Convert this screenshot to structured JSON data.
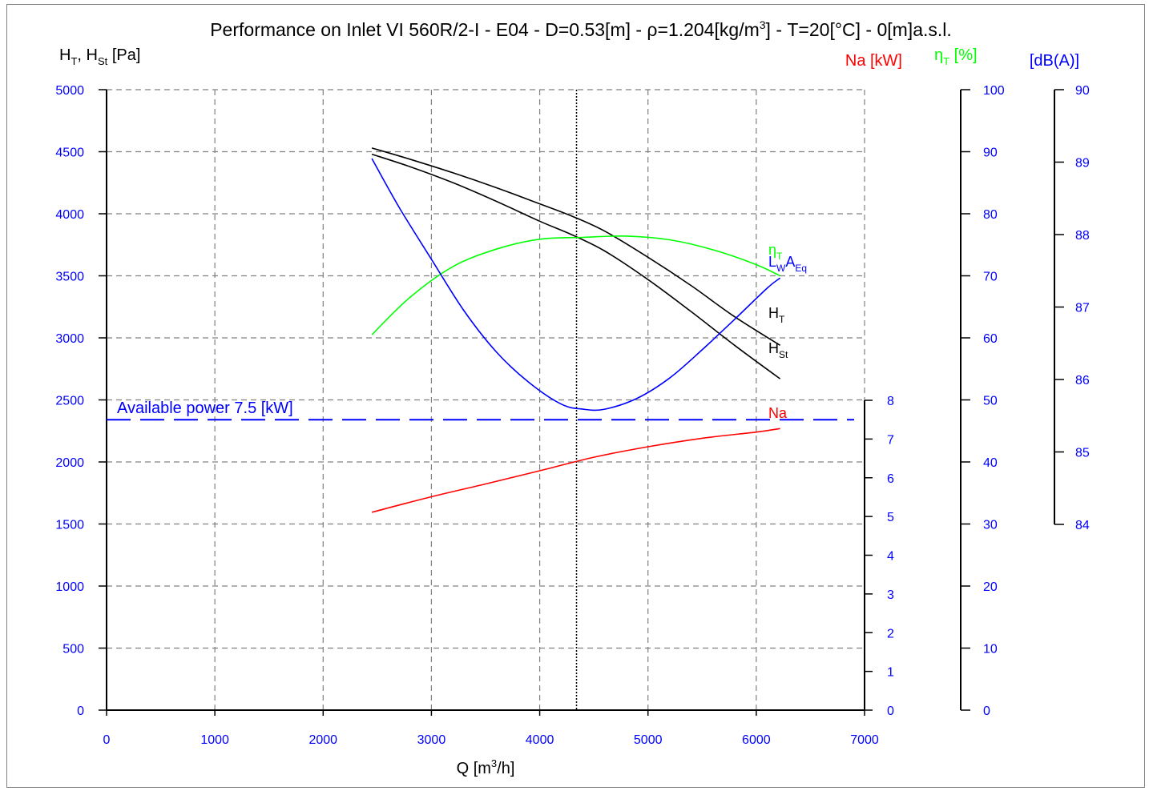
{
  "title": {
    "main": "Performance on Inlet VI 560R/2-I - E04 - D=0.53[m] - ρ=1.204[kg/m",
    "sup": "3",
    "tail": "] - T=20[°C] - 0[m]a.s.l."
  },
  "colors": {
    "black": "#000000",
    "blue": "#0000ff",
    "red": "#ff0000",
    "green": "#00ff00",
    "grid": "#808080",
    "frame": "#808080"
  },
  "chart_data": {
    "type": "line",
    "x_axis": {
      "label_main": "Q [m",
      "label_sup": "3",
      "label_tail": "/h]",
      "min": 0,
      "max": 7000,
      "ticks": [
        "0",
        "1000",
        "2000",
        "3000",
        "4000",
        "5000",
        "6000",
        "7000"
      ]
    },
    "y_axis_pressure": {
      "label_H": "H",
      "label_sub_T": "T",
      "label_sep": ", H",
      "label_sub_St": "St",
      "label_unit": " [Pa]",
      "min": 0,
      "max": 5000,
      "ticks": [
        "0",
        "500",
        "1000",
        "1500",
        "2000",
        "2500",
        "3000",
        "3500",
        "4000",
        "4500",
        "5000"
      ]
    },
    "y_axis_power": {
      "label": "Na [kW]",
      "min": 0,
      "max": 8,
      "ticks": [
        "0",
        "1",
        "2",
        "3",
        "4",
        "5",
        "6",
        "7",
        "8"
      ]
    },
    "y_axis_efficiency": {
      "label_eta": "η",
      "label_sub": "T",
      "label_unit": " [%]",
      "min": 0,
      "max": 100,
      "ticks": [
        "0",
        "10",
        "20",
        "30",
        "40",
        "50",
        "60",
        "70",
        "80",
        "90",
        "100"
      ]
    },
    "y_axis_sound": {
      "label": "[dB(A)]",
      "min": 84,
      "max": 90,
      "ticks": [
        "84",
        "85",
        "86",
        "87",
        "88",
        "89",
        "90"
      ]
    },
    "grid": true,
    "operating_point_q": 4340,
    "available_power": {
      "label": "Available power 7.5 [kW]",
      "value_kw": 7.5
    },
    "series": [
      {
        "key": "HT",
        "name": "H",
        "name_sub": "T",
        "axis": "pressure",
        "color": "#000000",
        "x": [
          2450,
          2800,
          3200,
          3600,
          4000,
          4300,
          4600,
          5000,
          5400,
          5800,
          6220
        ],
        "y": [
          4530,
          4440,
          4330,
          4210,
          4080,
          3980,
          3860,
          3650,
          3420,
          3170,
          2940
        ]
      },
      {
        "key": "HSt",
        "name": "H",
        "name_sub": "St",
        "axis": "pressure",
        "color": "#000000",
        "x": [
          2450,
          2800,
          3200,
          3600,
          4000,
          4300,
          4600,
          5000,
          5400,
          5800,
          6220
        ],
        "y": [
          4480,
          4380,
          4250,
          4100,
          3940,
          3830,
          3700,
          3470,
          3210,
          2940,
          2670
        ]
      },
      {
        "key": "eta",
        "name": "η",
        "name_sub": "T",
        "axis": "efficiency",
        "color": "#00ff00",
        "x": [
          2450,
          2800,
          3200,
          3600,
          4000,
          4400,
          4800,
          5200,
          5600,
          6000,
          6220
        ],
        "y": [
          60.5,
          66.5,
          71.5,
          74.3,
          75.9,
          76.2,
          76.4,
          75.8,
          74.2,
          71.8,
          70.0
        ]
      },
      {
        "key": "LwA",
        "name": "L",
        "name_sub": "W",
        "name_mid": "A",
        "name_sub2": "Eq",
        "axis": "sound",
        "color": "#0000ff",
        "x": [
          2450,
          2700,
          3000,
          3300,
          3600,
          3900,
          4200,
          4400,
          4600,
          4900,
          5200,
          5500,
          5800,
          6100,
          6220
        ],
        "y": [
          89.05,
          88.38,
          87.66,
          86.95,
          86.38,
          85.96,
          85.66,
          85.59,
          85.59,
          85.74,
          86.02,
          86.41,
          86.83,
          87.26,
          87.4
        ]
      },
      {
        "key": "Na",
        "name": "Na",
        "axis": "power",
        "color": "#ff0000",
        "x": [
          2450,
          3000,
          3500,
          4000,
          4500,
          5000,
          5500,
          6000,
          6220
        ],
        "y": [
          5.11,
          5.51,
          5.84,
          6.18,
          6.53,
          6.8,
          7.02,
          7.18,
          7.27
        ]
      }
    ]
  }
}
